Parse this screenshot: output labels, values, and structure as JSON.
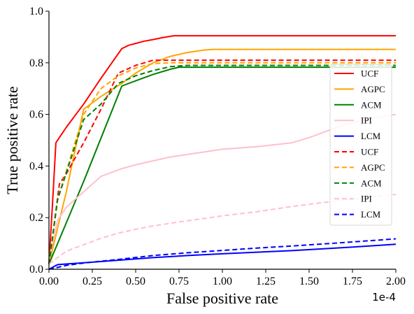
{
  "chart_data": {
    "type": "line",
    "xlabel": "False positive rate",
    "ylabel": "True positive rate",
    "x_offset_label": "1e-4",
    "xlim": [
      0,
      2.0
    ],
    "ylim": [
      0,
      1.0
    ],
    "x_ticks": [
      "0.00",
      "0.25",
      "0.50",
      "0.75",
      "1.00",
      "1.25",
      "1.50",
      "1.75",
      "2.00"
    ],
    "y_ticks": [
      "0.0",
      "0.2",
      "0.4",
      "0.6",
      "0.8",
      "1.0"
    ],
    "grid": false,
    "legend_position": "right",
    "series": [
      {
        "name": "UCF",
        "color": "#ff0000",
        "dash": "solid",
        "points": [
          [
            0,
            0.02
          ],
          [
            0.02,
            0.25
          ],
          [
            0.04,
            0.49
          ],
          [
            0.1,
            0.55
          ],
          [
            0.2,
            0.64
          ],
          [
            0.3,
            0.74
          ],
          [
            0.42,
            0.855
          ],
          [
            0.46,
            0.868
          ],
          [
            0.5,
            0.875
          ],
          [
            0.55,
            0.884
          ],
          [
            0.6,
            0.89
          ],
          [
            0.65,
            0.897
          ],
          [
            0.72,
            0.905
          ],
          [
            2.0,
            0.905
          ]
        ]
      },
      {
        "name": "AGPC",
        "color": "#ffa500",
        "dash": "solid",
        "points": [
          [
            0,
            0.02
          ],
          [
            0.1,
            0.3
          ],
          [
            0.2,
            0.62
          ],
          [
            0.3,
            0.67
          ],
          [
            0.42,
            0.72
          ],
          [
            0.5,
            0.76
          ],
          [
            0.6,
            0.8
          ],
          [
            0.7,
            0.825
          ],
          [
            0.8,
            0.84
          ],
          [
            0.9,
            0.85
          ],
          [
            0.95,
            0.852
          ],
          [
            2.0,
            0.852
          ]
        ]
      },
      {
        "name": "ACM",
        "color": "#008000",
        "dash": "solid",
        "points": [
          [
            0,
            0.02
          ],
          [
            0.1,
            0.18
          ],
          [
            0.2,
            0.34
          ],
          [
            0.42,
            0.71
          ],
          [
            0.5,
            0.73
          ],
          [
            0.6,
            0.755
          ],
          [
            0.7,
            0.775
          ],
          [
            0.75,
            0.783
          ],
          [
            2.0,
            0.783
          ]
        ]
      },
      {
        "name": "IPI",
        "color": "#ffc0cb",
        "dash": "solid",
        "points": [
          [
            0,
            0.04
          ],
          [
            0.05,
            0.19
          ],
          [
            0.1,
            0.24
          ],
          [
            0.2,
            0.3
          ],
          [
            0.3,
            0.36
          ],
          [
            0.42,
            0.39
          ],
          [
            0.5,
            0.405
          ],
          [
            0.6,
            0.42
          ],
          [
            0.7,
            0.435
          ],
          [
            0.8,
            0.445
          ],
          [
            0.9,
            0.455
          ],
          [
            1.0,
            0.465
          ],
          [
            1.2,
            0.475
          ],
          [
            1.4,
            0.49
          ],
          [
            1.5,
            0.51
          ],
          [
            1.6,
            0.535
          ],
          [
            1.7,
            0.56
          ],
          [
            1.8,
            0.575
          ],
          [
            1.9,
            0.59
          ],
          [
            2.0,
            0.6
          ]
        ]
      },
      {
        "name": "LCM",
        "color": "#0000ff",
        "dash": "solid",
        "points": [
          [
            0,
            0.0
          ],
          [
            0.05,
            0.018
          ],
          [
            0.2,
            0.025
          ],
          [
            0.4,
            0.035
          ],
          [
            0.6,
            0.045
          ],
          [
            0.8,
            0.053
          ],
          [
            1.0,
            0.06
          ],
          [
            1.2,
            0.066
          ],
          [
            1.4,
            0.072
          ],
          [
            1.6,
            0.08
          ],
          [
            1.8,
            0.088
          ],
          [
            2.0,
            0.097
          ]
        ]
      },
      {
        "name": "UCF",
        "color": "#ff0000",
        "dash": "dashed",
        "points": [
          [
            0,
            0.02
          ],
          [
            0.06,
            0.33
          ],
          [
            0.1,
            0.37
          ],
          [
            0.2,
            0.49
          ],
          [
            0.3,
            0.62
          ],
          [
            0.4,
            0.76
          ],
          [
            0.5,
            0.79
          ],
          [
            0.6,
            0.81
          ],
          [
            2.0,
            0.81
          ]
        ]
      },
      {
        "name": "AGPC",
        "color": "#ffa500",
        "dash": "dashed",
        "points": [
          [
            0,
            0.02
          ],
          [
            0.05,
            0.27
          ],
          [
            0.2,
            0.6
          ],
          [
            0.3,
            0.7
          ],
          [
            0.4,
            0.75
          ],
          [
            0.5,
            0.78
          ],
          [
            0.6,
            0.797
          ],
          [
            0.7,
            0.8
          ],
          [
            2.0,
            0.8
          ]
        ]
      },
      {
        "name": "ACM",
        "color": "#008000",
        "dash": "dashed",
        "points": [
          [
            0,
            0.02
          ],
          [
            0.05,
            0.27
          ],
          [
            0.2,
            0.58
          ],
          [
            0.3,
            0.64
          ],
          [
            0.4,
            0.72
          ],
          [
            0.5,
            0.75
          ],
          [
            0.6,
            0.77
          ],
          [
            0.7,
            0.785
          ],
          [
            0.8,
            0.79
          ],
          [
            2.0,
            0.79
          ]
        ]
      },
      {
        "name": "IPI",
        "color": "#ffc0cb",
        "dash": "dashed",
        "points": [
          [
            0,
            0.02
          ],
          [
            0.1,
            0.07
          ],
          [
            0.2,
            0.095
          ],
          [
            0.3,
            0.12
          ],
          [
            0.4,
            0.14
          ],
          [
            0.5,
            0.155
          ],
          [
            0.6,
            0.168
          ],
          [
            0.7,
            0.178
          ],
          [
            0.8,
            0.188
          ],
          [
            0.9,
            0.197
          ],
          [
            1.0,
            0.207
          ],
          [
            1.2,
            0.223
          ],
          [
            1.4,
            0.243
          ],
          [
            1.6,
            0.26
          ],
          [
            1.8,
            0.275
          ],
          [
            2.0,
            0.29
          ]
        ]
      },
      {
        "name": "LCM",
        "color": "#0000ff",
        "dash": "dashed",
        "points": [
          [
            0,
            0.0
          ],
          [
            0.1,
            0.015
          ],
          [
            0.2,
            0.024
          ],
          [
            0.4,
            0.038
          ],
          [
            0.6,
            0.053
          ],
          [
            0.8,
            0.064
          ],
          [
            1.0,
            0.073
          ],
          [
            1.2,
            0.082
          ],
          [
            1.4,
            0.09
          ],
          [
            1.6,
            0.099
          ],
          [
            1.8,
            0.108
          ],
          [
            2.0,
            0.118
          ]
        ]
      }
    ]
  }
}
